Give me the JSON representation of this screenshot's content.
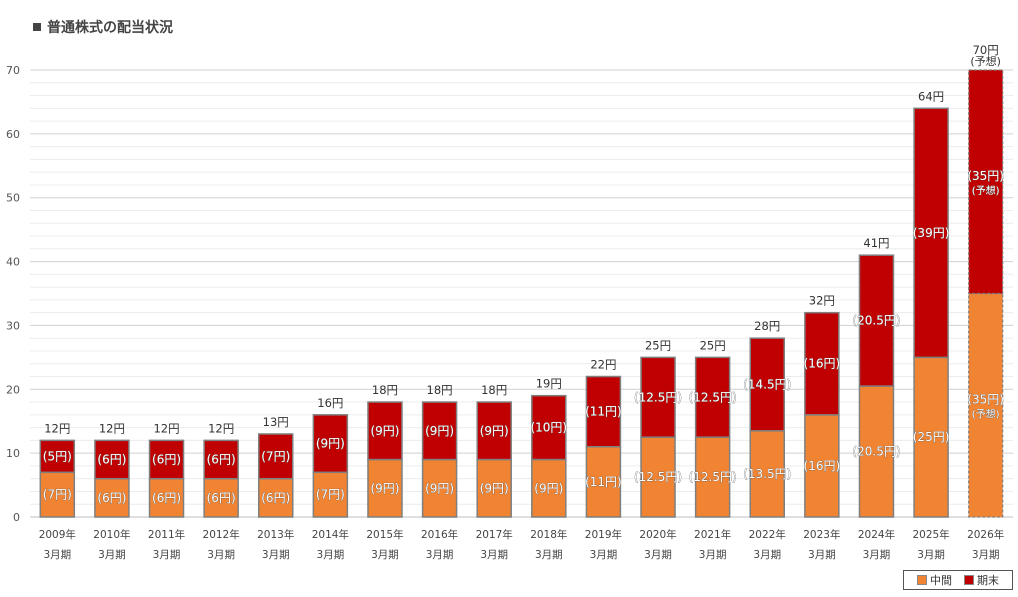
{
  "page": {
    "title": "普通株式の配当状況"
  },
  "colors": {
    "interim": "#F08432",
    "yearend": "#C00000",
    "border": "#7f7f7f",
    "grid": "#e0e0e0"
  },
  "chart_data": {
    "type": "bar",
    "stacked": true,
    "title": "普通株式の配当状況",
    "categories": [
      "2009年3月期",
      "2010年3月期",
      "2011年3月期",
      "2012年3月期",
      "2013年3月期",
      "2014年3月期",
      "2015年3月期",
      "2016年3月期",
      "2017年3月期",
      "2018年3月期",
      "2019年3月期",
      "2020年3月期",
      "2021年3月期",
      "2022年3月期",
      "2023年3月期",
      "2024年3月期",
      "2025年3月期",
      "2026年3月期"
    ],
    "category_lines": [
      [
        "2009年",
        "3月期"
      ],
      [
        "2010年",
        "3月期"
      ],
      [
        "2011年",
        "3月期"
      ],
      [
        "2012年",
        "3月期"
      ],
      [
        "2013年",
        "3月期"
      ],
      [
        "2014年",
        "3月期"
      ],
      [
        "2015年",
        "3月期"
      ],
      [
        "2016年",
        "3月期"
      ],
      [
        "2017年",
        "3月期"
      ],
      [
        "2018年",
        "3月期"
      ],
      [
        "2019年",
        "3月期"
      ],
      [
        "2020年",
        "3月期"
      ],
      [
        "2021年",
        "3月期"
      ],
      [
        "2022年",
        "3月期"
      ],
      [
        "2023年",
        "3月期"
      ],
      [
        "2024年",
        "3月期"
      ],
      [
        "2025年",
        "3月期"
      ],
      [
        "2026年",
        "3月期"
      ]
    ],
    "series": [
      {
        "name": "中間",
        "values": [
          7,
          6,
          6,
          6,
          6,
          7,
          9,
          9,
          9,
          9,
          11,
          12.5,
          12.5,
          13.5,
          16,
          20.5,
          25,
          35
        ],
        "labels": [
          "(7円)",
          "(6円)",
          "(6円)",
          "(6円)",
          "(6円)",
          "(7円)",
          "(9円)",
          "(9円)",
          "(9円)",
          "(9円)",
          "(11円)",
          "(12.5円)",
          "(12.5円)",
          "(13.5円)",
          "(16円)",
          "(20.5円)",
          "(25円)",
          "(35円)"
        ]
      },
      {
        "name": "期末",
        "values": [
          5,
          6,
          6,
          6,
          7,
          9,
          9,
          9,
          9,
          10,
          11,
          12.5,
          12.5,
          14.5,
          16,
          20.5,
          39,
          35
        ],
        "labels": [
          "(5円)",
          "(6円)",
          "(6円)",
          "(6円)",
          "(7円)",
          "(9円)",
          "(9円)",
          "(9円)",
          "(9円)",
          "(10円)",
          "(11円)",
          "(12.5円)",
          "(12.5円)",
          "(14.5円)",
          "(16円)",
          "(20.5円)",
          "(39円)",
          "(35円)"
        ]
      }
    ],
    "totals": [
      12,
      12,
      12,
      12,
      13,
      16,
      18,
      18,
      18,
      19,
      22,
      25,
      25,
      28,
      32,
      41,
      64,
      70
    ],
    "total_labels": [
      "12円",
      "12円",
      "12円",
      "12円",
      "13円",
      "16円",
      "18円",
      "18円",
      "18円",
      "19円",
      "22円",
      "25円",
      "25円",
      "28円",
      "32円",
      "41円",
      "64円",
      "70円"
    ],
    "forecast_note": "(予想)",
    "forecast_index": 17,
    "ylim": [
      0,
      70
    ],
    "yticks": [
      0,
      10,
      20,
      30,
      40,
      50,
      60,
      70
    ],
    "xlabel": "",
    "ylabel": "",
    "grid": true,
    "legend": {
      "position": "bottom-right",
      "entries": [
        "中間",
        "期末"
      ]
    }
  }
}
